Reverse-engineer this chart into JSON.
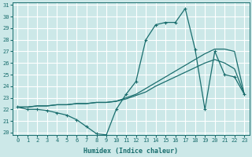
{
  "xlabel": "Humidex (Indice chaleur)",
  "bg_color": "#cce8e8",
  "grid_color": "#ffffff",
  "line_color": "#1a6e6e",
  "x": [
    0,
    1,
    2,
    3,
    4,
    5,
    6,
    7,
    8,
    9,
    10,
    11,
    12,
    13,
    14,
    15,
    16,
    17,
    18,
    19,
    20,
    21,
    22,
    23
  ],
  "y_main": [
    22.2,
    22.0,
    22.0,
    21.9,
    21.7,
    21.5,
    21.1,
    20.5,
    19.9,
    19.8,
    22.0,
    23.3,
    24.4,
    28.0,
    29.3,
    29.5,
    29.5,
    30.7,
    27.2,
    22.0,
    27.0,
    25.0,
    24.8,
    23.3
  ],
  "y_line2": [
    22.2,
    22.2,
    22.3,
    22.3,
    22.4,
    22.4,
    22.5,
    22.5,
    22.6,
    22.6,
    22.7,
    23.0,
    23.3,
    23.8,
    24.3,
    24.8,
    25.3,
    25.8,
    26.3,
    26.8,
    27.2,
    27.2,
    27.0,
    23.3
  ],
  "y_line3": [
    22.2,
    22.2,
    22.3,
    22.3,
    22.4,
    22.4,
    22.5,
    22.5,
    22.6,
    22.6,
    22.7,
    22.9,
    23.2,
    23.5,
    24.0,
    24.4,
    24.8,
    25.2,
    25.6,
    26.0,
    26.3,
    26.0,
    25.5,
    23.3
  ],
  "ylim": [
    20,
    31
  ],
  "xlim_min": -0.5,
  "xlim_max": 23.5,
  "yticks": [
    20,
    21,
    22,
    23,
    24,
    25,
    26,
    27,
    28,
    29,
    30,
    31
  ],
  "xticks": [
    0,
    1,
    2,
    3,
    4,
    5,
    6,
    7,
    8,
    9,
    10,
    11,
    12,
    13,
    14,
    15,
    16,
    17,
    18,
    19,
    20,
    21,
    22,
    23
  ]
}
